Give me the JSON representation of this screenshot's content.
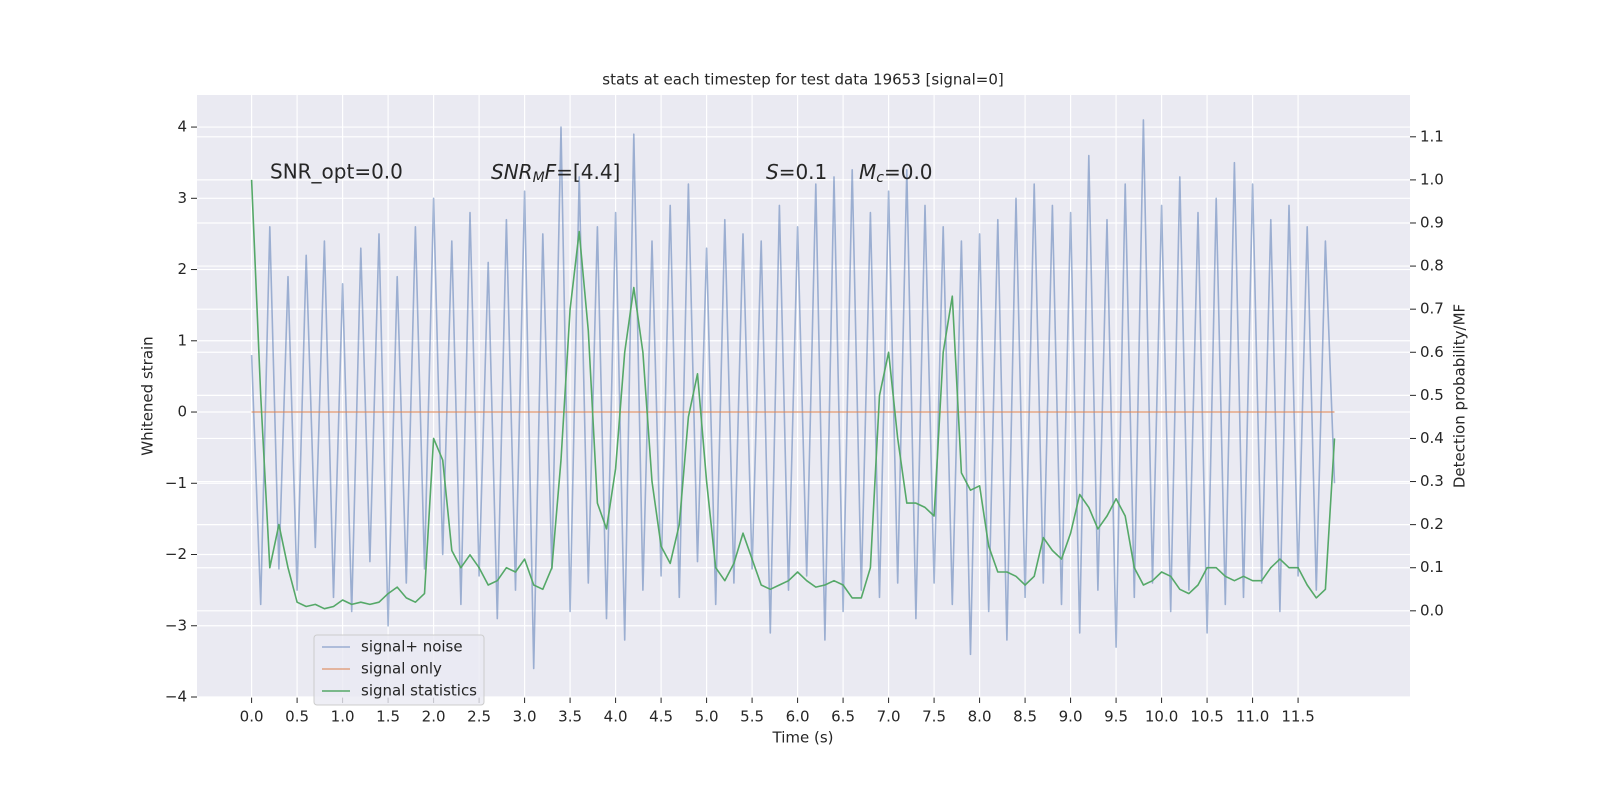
{
  "chart_data": {
    "type": "line",
    "title": "stats at each timestep for test data 19653 [signal=0]",
    "xlabel": "Time (s)",
    "ylabel": "Whitened strain",
    "y2label": "Detection probability/MF",
    "annotations": [
      "SNR_opt=0.0",
      [
        "SNR",
        "M",
        "F",
        "=[4.4]"
      ],
      [
        "S",
        "=0.1"
      ],
      [
        "M",
        "c",
        "=0.0"
      ]
    ],
    "x": [
      0.0,
      0.1,
      0.2,
      0.3,
      0.4,
      0.5,
      0.6,
      0.7,
      0.8,
      0.9,
      1.0,
      1.1,
      1.2,
      1.3,
      1.4,
      1.5,
      1.6,
      1.7,
      1.8,
      1.9,
      2.0,
      2.1,
      2.2,
      2.3,
      2.4,
      2.5,
      2.6,
      2.7,
      2.8,
      2.9,
      3.0,
      3.1,
      3.2,
      3.3,
      3.4,
      3.5,
      3.6,
      3.7,
      3.8,
      3.9,
      4.0,
      4.1,
      4.2,
      4.3,
      4.4,
      4.5,
      4.6,
      4.7,
      4.8,
      4.9,
      5.0,
      5.1,
      5.2,
      5.3,
      5.4,
      5.5,
      5.6,
      5.7,
      5.8,
      5.9,
      6.0,
      6.1,
      6.2,
      6.3,
      6.4,
      6.5,
      6.6,
      6.7,
      6.8,
      6.9,
      7.0,
      7.1,
      7.2,
      7.3,
      7.4,
      7.5,
      7.6,
      7.7,
      7.8,
      7.9,
      8.0,
      8.1,
      8.2,
      8.3,
      8.4,
      8.5,
      8.6,
      8.7,
      8.8,
      8.9,
      9.0,
      9.1,
      9.2,
      9.3,
      9.4,
      9.5,
      9.6,
      9.7,
      9.8,
      9.9,
      10.0,
      10.1,
      10.2,
      10.3,
      10.4,
      10.5,
      10.6,
      10.7,
      10.8,
      10.9,
      11.0,
      11.1,
      11.2,
      11.3,
      11.4,
      11.5,
      11.6,
      11.7,
      11.8,
      11.9
    ],
    "series": [
      {
        "name": "signal+ noise",
        "color": "#4c72b0",
        "opacity": 0.5,
        "values": [
          0.8,
          -2.7,
          2.6,
          -2.2,
          1.9,
          -2.5,
          2.2,
          -1.9,
          2.4,
          -2.6,
          1.8,
          -2.8,
          2.3,
          -2.1,
          2.5,
          -3.0,
          1.9,
          -2.4,
          2.6,
          -2.2,
          3.0,
          -2.0,
          2.4,
          -2.7,
          2.8,
          -2.3,
          2.1,
          -2.9,
          2.7,
          -2.5,
          3.1,
          -3.6,
          2.5,
          -2.2,
          4.0,
          -2.8,
          3.3,
          -2.4,
          2.6,
          -2.9,
          2.8,
          -3.2,
          3.9,
          -2.5,
          2.4,
          -2.3,
          2.9,
          -2.6,
          3.2,
          -2.1,
          2.3,
          -2.7,
          2.7,
          -2.4,
          2.5,
          -2.2,
          2.4,
          -3.1,
          2.9,
          -2.5,
          2.6,
          -2.3,
          3.2,
          -3.2,
          3.3,
          -2.8,
          3.4,
          -2.5,
          2.8,
          -2.6,
          3.1,
          -2.4,
          3.4,
          -2.9,
          2.9,
          -2.4,
          2.6,
          -2.7,
          2.4,
          -3.4,
          2.5,
          -2.8,
          2.7,
          -3.2,
          3.0,
          -2.6,
          3.2,
          -2.4,
          2.9,
          -2.7,
          2.8,
          -3.1,
          3.6,
          -2.5,
          2.7,
          -3.3,
          3.2,
          -2.6,
          4.1,
          -2.4,
          2.9,
          -2.8,
          3.3,
          -2.5,
          2.8,
          -3.1,
          3.0,
          -2.7,
          3.5,
          -2.6,
          3.2,
          -2.4,
          2.7,
          -2.8,
          2.9,
          -2.3,
          2.6,
          -2.5,
          2.4,
          -1.0
        ]
      },
      {
        "name": "signal only",
        "color": "#dd8452",
        "opacity": 0.7,
        "values": [
          0,
          0,
          0,
          0,
          0,
          0,
          0,
          0,
          0,
          0,
          0,
          0,
          0,
          0,
          0,
          0,
          0,
          0,
          0,
          0,
          0,
          0,
          0,
          0,
          0,
          0,
          0,
          0,
          0,
          0,
          0,
          0,
          0,
          0,
          0,
          0,
          0,
          0,
          0,
          0,
          0,
          0,
          0,
          0,
          0,
          0,
          0,
          0,
          0,
          0,
          0,
          0,
          0,
          0,
          0,
          0,
          0,
          0,
          0,
          0,
          0,
          0,
          0,
          0,
          0,
          0,
          0,
          0,
          0,
          0,
          0,
          0,
          0,
          0,
          0,
          0,
          0,
          0,
          0,
          0,
          0,
          0,
          0,
          0,
          0,
          0,
          0,
          0,
          0,
          0,
          0,
          0,
          0,
          0,
          0,
          0,
          0,
          0,
          0,
          0,
          0,
          0,
          0,
          0,
          0,
          0,
          0,
          0,
          0,
          0,
          0,
          0,
          0,
          0,
          0,
          0,
          0,
          0,
          0,
          0
        ]
      },
      {
        "name": "signal statistics",
        "color": "#55a868",
        "opacity": 1,
        "axis": "y2",
        "values": [
          1.0,
          0.5,
          0.1,
          0.2,
          0.1,
          0.02,
          0.01,
          0.015,
          0.005,
          0.01,
          0.025,
          0.015,
          0.02,
          0.015,
          0.02,
          0.04,
          0.055,
          0.03,
          0.02,
          0.04,
          0.4,
          0.35,
          0.14,
          0.1,
          0.13,
          0.1,
          0.06,
          0.07,
          0.1,
          0.09,
          0.12,
          0.06,
          0.05,
          0.1,
          0.35,
          0.7,
          0.88,
          0.65,
          0.25,
          0.19,
          0.33,
          0.6,
          0.75,
          0.6,
          0.3,
          0.15,
          0.11,
          0.2,
          0.45,
          0.55,
          0.3,
          0.1,
          0.07,
          0.11,
          0.18,
          0.12,
          0.06,
          0.05,
          0.06,
          0.07,
          0.09,
          0.07,
          0.055,
          0.06,
          0.07,
          0.06,
          0.03,
          0.03,
          0.1,
          0.5,
          0.6,
          0.4,
          0.25,
          0.25,
          0.24,
          0.22,
          0.6,
          0.73,
          0.32,
          0.28,
          0.29,
          0.15,
          0.09,
          0.09,
          0.08,
          0.06,
          0.08,
          0.17,
          0.14,
          0.12,
          0.18,
          0.27,
          0.24,
          0.19,
          0.22,
          0.26,
          0.22,
          0.1,
          0.06,
          0.07,
          0.09,
          0.08,
          0.05,
          0.04,
          0.06,
          0.1,
          0.1,
          0.08,
          0.07,
          0.08,
          0.07,
          0.07,
          0.1,
          0.12,
          0.1,
          0.1,
          0.06,
          0.03,
          0.05,
          0.4
        ]
      }
    ],
    "xlim": [
      -0.6,
      12.73
    ],
    "xticks": [
      {
        "value": 0,
        "label": "0.0"
      },
      0.5,
      {
        "value": 1,
        "label": "1.0"
      },
      1.5,
      {
        "value": 2,
        "label": "2.0"
      },
      2.5,
      {
        "value": 3,
        "label": "3.0"
      },
      3.5,
      {
        "value": 4,
        "label": "4.0"
      },
      4.5,
      {
        "value": 5,
        "label": "5.0"
      },
      5.5,
      {
        "value": 6,
        "label": "6.0"
      },
      6.5,
      {
        "value": 7,
        "label": "7.0"
      },
      7.5,
      {
        "value": 8,
        "label": "8.0"
      },
      8.5,
      {
        "value": 9,
        "label": "9.0"
      },
      9.5,
      {
        "value": 10,
        "label": "10.0"
      },
      10.5,
      {
        "value": 11,
        "label": "11.0"
      },
      11.5
    ],
    "ylim": [
      -4,
      4.45
    ],
    "yticks": [
      {
        "value": -4,
        "label": "−4"
      },
      {
        "value": -3,
        "label": "−3"
      },
      {
        "value": -2,
        "label": "−2"
      },
      {
        "value": -1,
        "label": "−1"
      },
      0,
      1,
      2,
      3,
      4
    ],
    "y2lim": [
      -0.2,
      1.197
    ],
    "y2ticks": [
      {
        "value": 0,
        "label": "0.0"
      },
      0.1,
      0.2,
      0.3,
      0.4,
      0.5,
      0.6,
      0.7,
      0.8,
      0.9,
      {
        "value": 1,
        "label": "1.0"
      },
      1.1
    ],
    "grid": true,
    "legend": "lower left"
  }
}
